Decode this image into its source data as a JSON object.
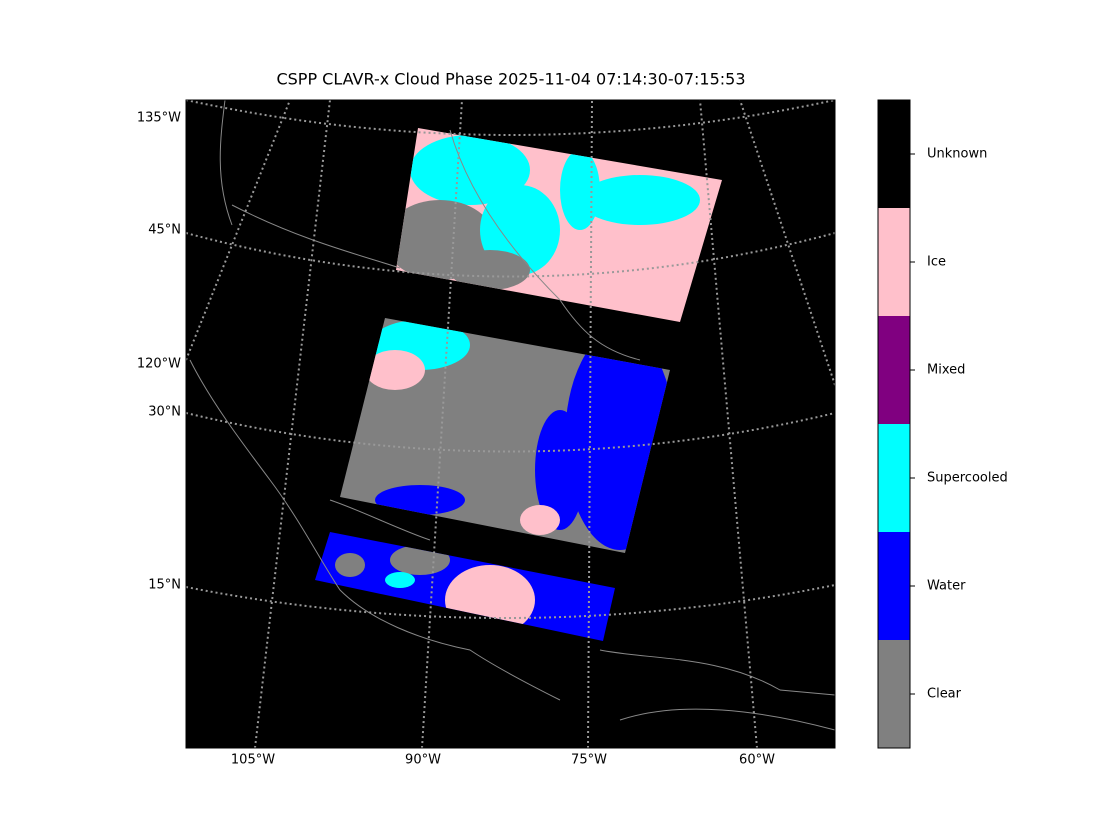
{
  "title": "CSPP CLAVR-x Cloud Phase 2025-11-04 07:14:30-07:15:53",
  "map": {
    "left_labels": [
      "135°W",
      "45°N",
      "120°W",
      "30°N",
      "15°N"
    ],
    "bottom_labels": [
      "105°W",
      "90°W",
      "75°W",
      "60°W"
    ]
  },
  "colorbar": {
    "categories": [
      {
        "label": "Unknown",
        "color": "#000000"
      },
      {
        "label": "Ice",
        "color": "#ffc0cb"
      },
      {
        "label": "Mixed",
        "color": "#800080"
      },
      {
        "label": "Supercooled",
        "color": "#00ffff"
      },
      {
        "label": "Water",
        "color": "#0000ff"
      },
      {
        "label": "Clear",
        "color": "#808080"
      }
    ]
  }
}
